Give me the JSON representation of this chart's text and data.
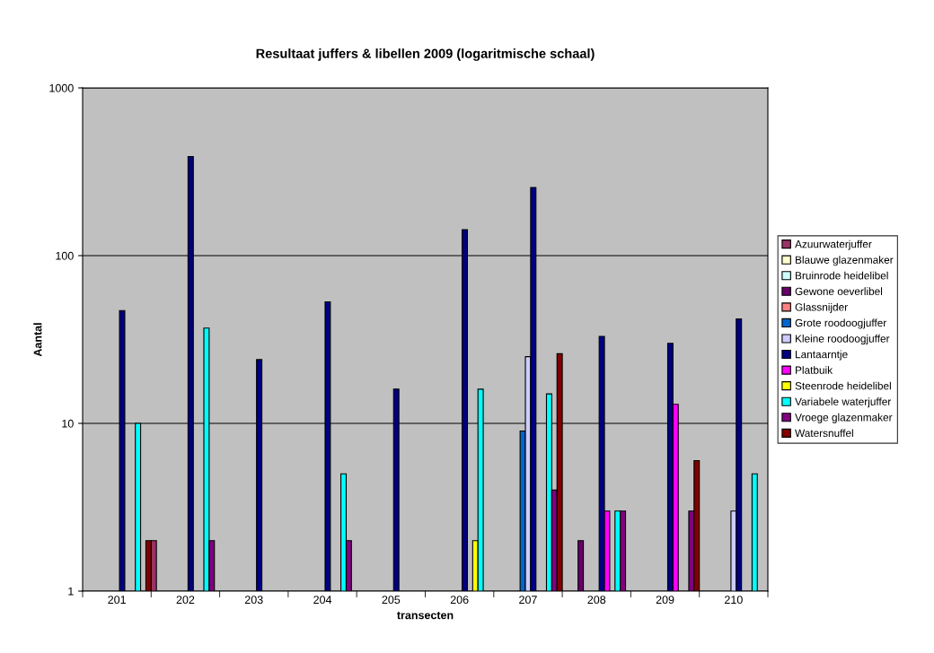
{
  "chart_data": {
    "type": "bar",
    "title": "Resultaat juffers & libellen 2009 (logaritmische schaal)",
    "xlabel": "transecten",
    "ylabel": "Aantal",
    "categories": [
      "201",
      "202",
      "203",
      "204",
      "205",
      "206",
      "207",
      "208",
      "209",
      "210"
    ],
    "log": true,
    "ylim": [
      1,
      1000
    ],
    "yticks": [
      1,
      10,
      100,
      1000
    ],
    "grid": "y",
    "legend": "right",
    "series": [
      {
        "name": "Azuurwaterjuffer",
        "color": "#993366",
        "values": [
          null,
          2,
          null,
          null,
          null,
          null,
          null,
          null,
          null,
          null
        ]
      },
      {
        "name": "Blauwe glazenmaker",
        "color": "#ffffcc",
        "values": [
          null,
          null,
          null,
          null,
          null,
          null,
          null,
          null,
          null,
          null
        ]
      },
      {
        "name": "Bruinrode heidelibel",
        "color": "#ccffff",
        "values": [
          null,
          null,
          null,
          null,
          null,
          null,
          null,
          null,
          null,
          null
        ]
      },
      {
        "name": "Gewone oeverlibel",
        "color": "#660066",
        "values": [
          null,
          null,
          null,
          null,
          null,
          null,
          null,
          2,
          null,
          null
        ]
      },
      {
        "name": "Glassnijder",
        "color": "#ff8080",
        "values": [
          null,
          null,
          null,
          null,
          null,
          null,
          null,
          null,
          null,
          null
        ]
      },
      {
        "name": "Grote roodoogjuffer",
        "color": "#0066cc",
        "values": [
          null,
          null,
          null,
          null,
          null,
          null,
          9,
          null,
          null,
          null
        ]
      },
      {
        "name": "Kleine roodoogjuffer",
        "color": "#ccccff",
        "values": [
          null,
          null,
          null,
          null,
          null,
          null,
          25,
          null,
          null,
          3
        ]
      },
      {
        "name": "Lantaarntje",
        "color": "#000080",
        "values": [
          47,
          390,
          24,
          53,
          16,
          143,
          255,
          33,
          30,
          42
        ]
      },
      {
        "name": "Platbuik",
        "color": "#ff00ff",
        "values": [
          null,
          null,
          null,
          null,
          null,
          null,
          null,
          3,
          13,
          null
        ]
      },
      {
        "name": "Steenrode heidelibel",
        "color": "#ffff00",
        "values": [
          null,
          null,
          null,
          null,
          null,
          2,
          null,
          null,
          null,
          null
        ]
      },
      {
        "name": "Variabele waterjuffer",
        "color": "#00ffff",
        "values": [
          10,
          37,
          null,
          5,
          null,
          16,
          15,
          3,
          null,
          5
        ]
      },
      {
        "name": "Vroege glazenmaker",
        "color": "#800080",
        "values": [
          null,
          2,
          null,
          2,
          null,
          null,
          4,
          3,
          3,
          null
        ]
      },
      {
        "name": "Watersnuffel",
        "color": "#800000",
        "values": [
          2,
          null,
          null,
          null,
          null,
          null,
          26,
          null,
          6,
          null
        ]
      }
    ]
  }
}
